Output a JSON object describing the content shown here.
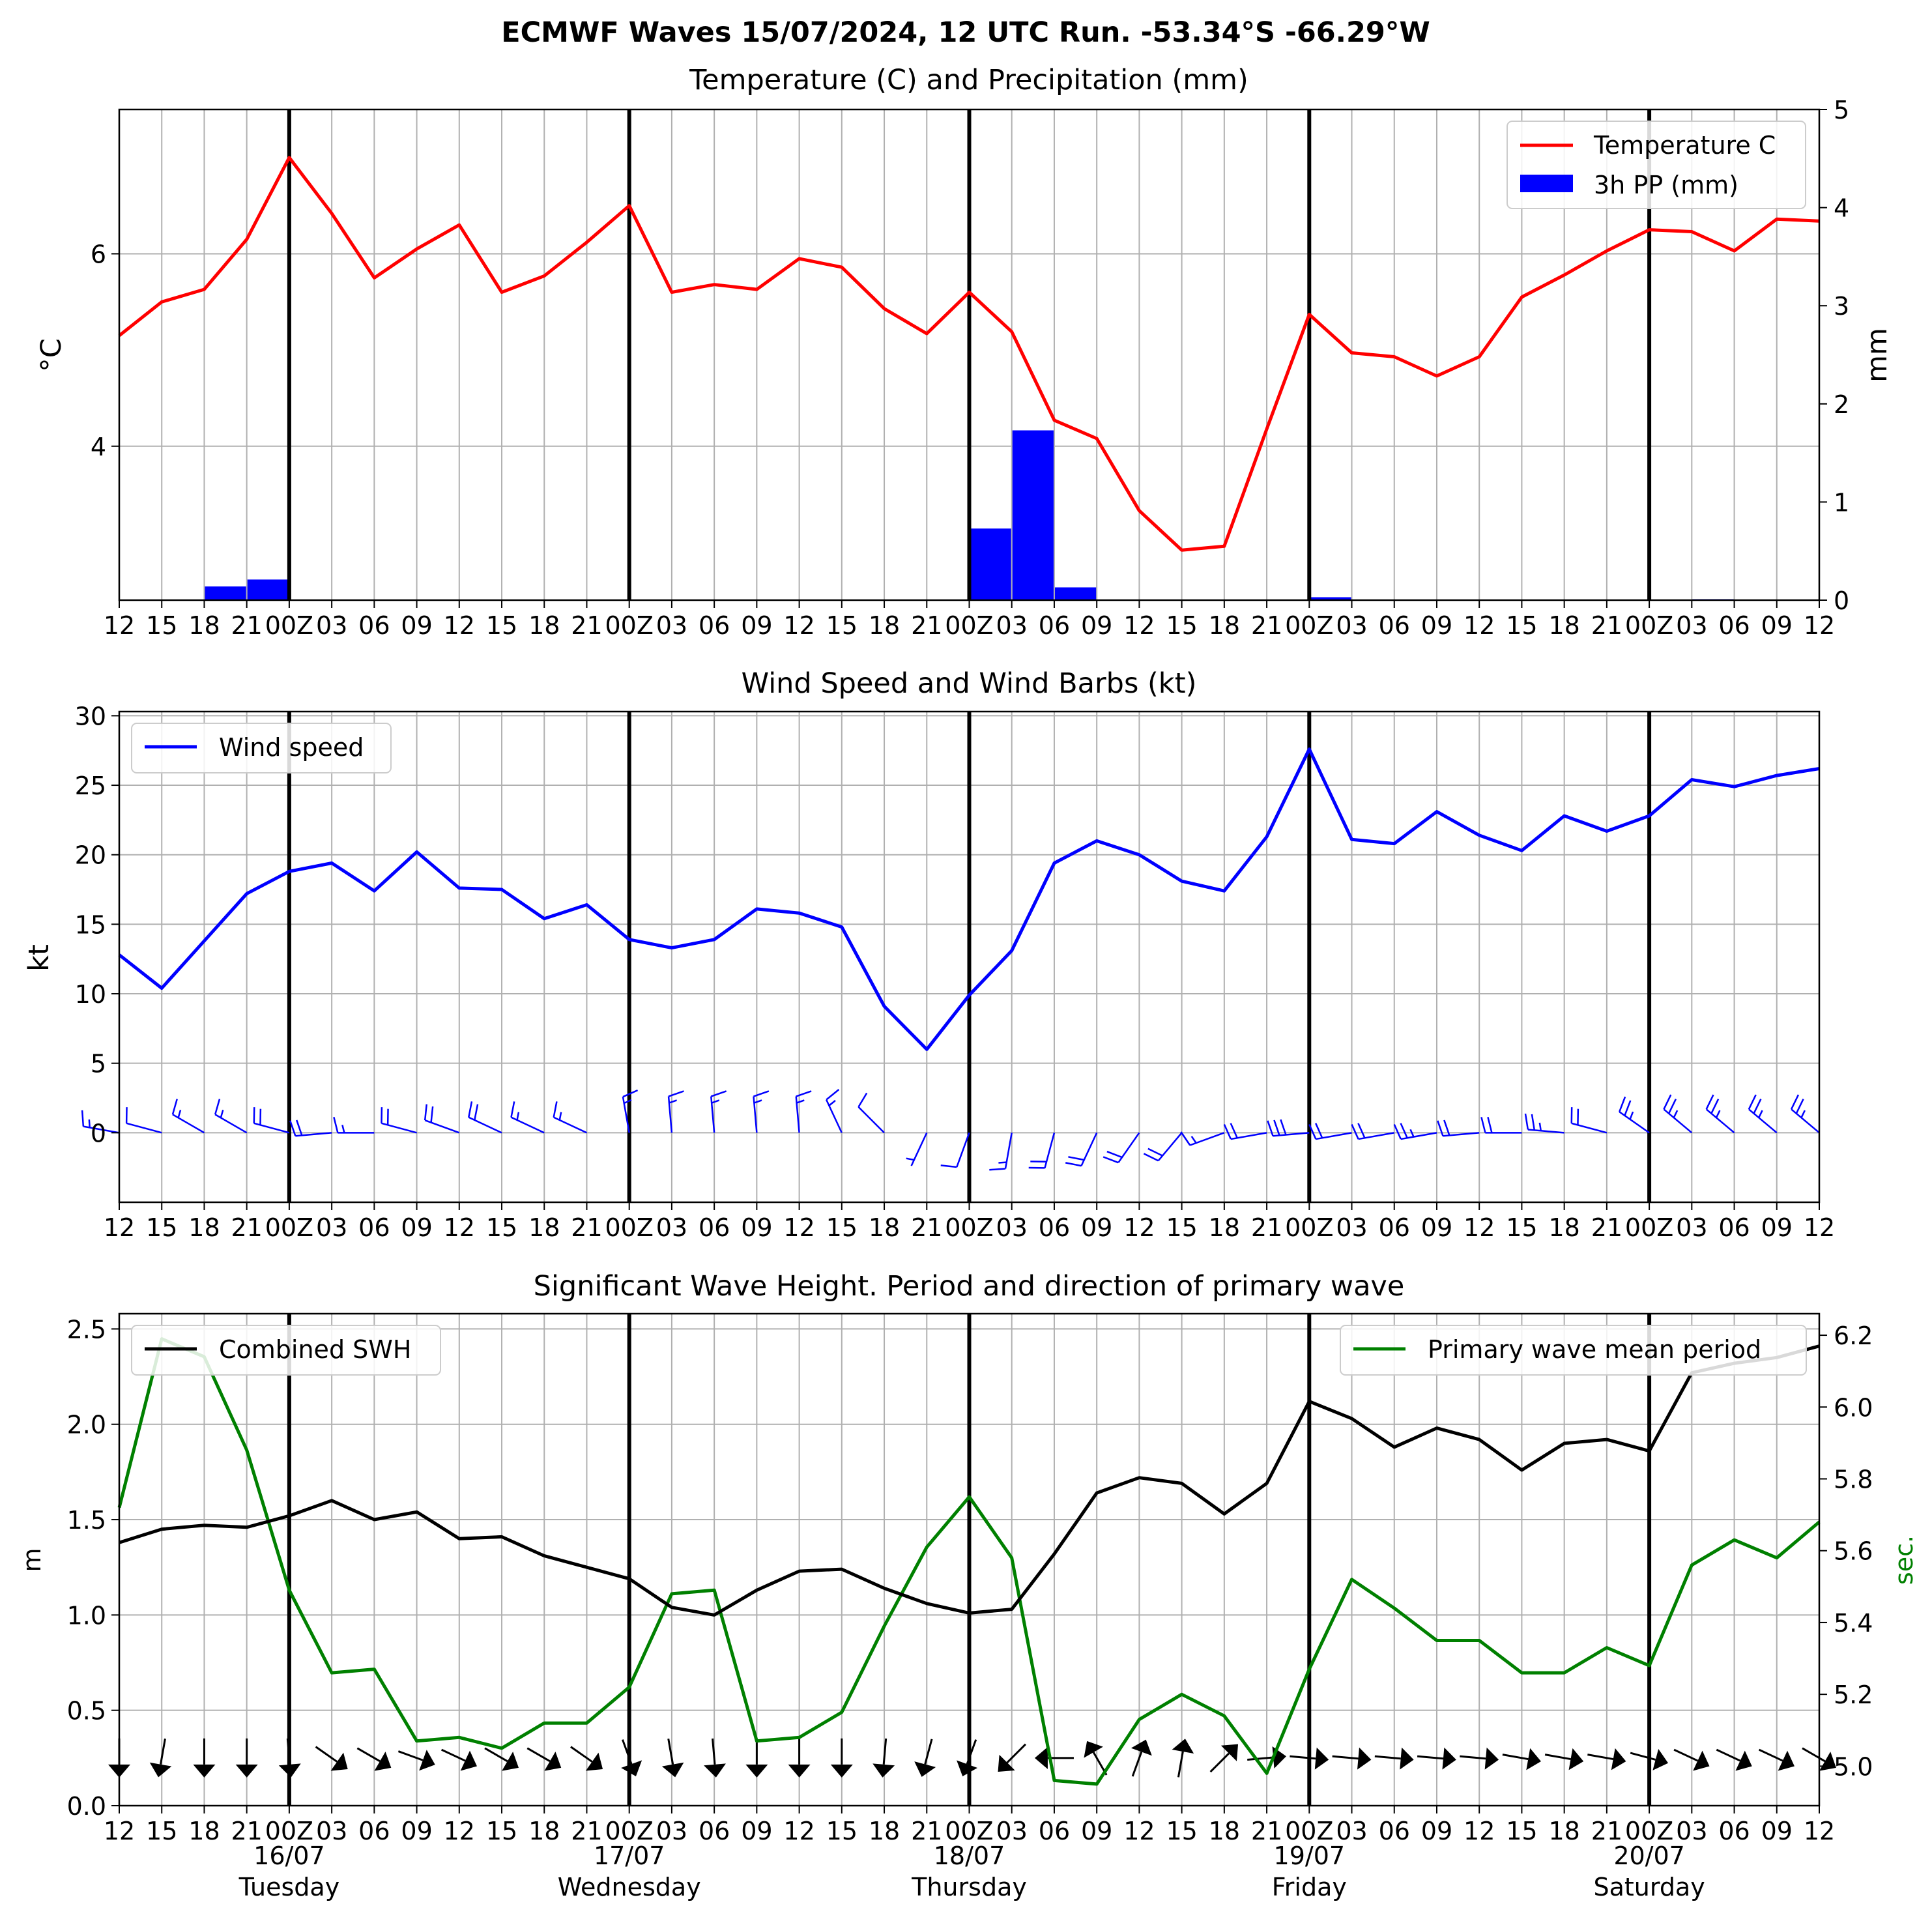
{
  "title": "ECMWF Waves 15/07/2024, 12 UTC Run. -53.34°S -66.29°W",
  "x_tick_labels": [
    "12",
    "15",
    "18",
    "21",
    "00Z",
    "03",
    "06",
    "09",
    "12",
    "15",
    "18",
    "21",
    "00Z",
    "03",
    "06",
    "09",
    "12",
    "15",
    "18",
    "21",
    "00Z",
    "03",
    "06",
    "09",
    "12",
    "15",
    "18",
    "21",
    "00Z",
    "03",
    "06",
    "09",
    "12",
    "15",
    "18",
    "21",
    "00Z",
    "03",
    "06",
    "09",
    "12"
  ],
  "day_labels": [
    {
      "date": "16/07",
      "day": "Tuesday",
      "tick_index": 4
    },
    {
      "date": "17/07",
      "day": "Wednesday",
      "tick_index": 12
    },
    {
      "date": "18/07",
      "day": "Thursday",
      "tick_index": 20
    },
    {
      "date": "19/07",
      "day": "Friday",
      "tick_index": 28
    },
    {
      "date": "20/07",
      "day": "Saturday",
      "tick_index": 36
    }
  ],
  "day_boundary_indices": [
    4,
    12,
    20,
    28,
    36
  ],
  "colors": {
    "temperature": "#ff0000",
    "precip": "#0000ff",
    "wind": "#0000ff",
    "swh": "#000000",
    "period": "#008000",
    "grid": "#b0b0b0"
  },
  "chart_data": [
    {
      "type": "line",
      "title": "Temperature (C) and Precipitation (mm)",
      "ylabel": "$^\\circ$C",
      "ylabel_right": "mm",
      "ylim": [
        2.4,
        7.5
      ],
      "yticks": [
        4,
        6
      ],
      "ylim_right": [
        0,
        5
      ],
      "yticks_right": [
        0,
        1,
        2,
        3,
        4,
        5
      ],
      "legend": "top-right",
      "series": [
        {
          "name": "Temperature C",
          "kind": "line",
          "values": [
            5.15,
            5.5,
            5.63,
            6.15,
            7.0,
            6.42,
            5.75,
            6.05,
            6.3,
            5.6,
            5.77,
            6.12,
            6.5,
            5.6,
            5.68,
            5.63,
            5.95,
            5.86,
            5.43,
            5.17,
            5.6,
            5.19,
            4.27,
            4.08,
            3.33,
            2.92,
            2.96,
            4.18,
            5.37,
            4.97,
            4.93,
            4.73,
            4.93,
            5.55,
            5.78,
            6.03,
            6.25,
            6.23,
            6.03,
            6.36,
            6.34
          ]
        },
        {
          "name": "3h PP (mm)",
          "kind": "bar",
          "values": [
            0,
            0,
            0.14,
            0.21,
            0,
            0,
            0,
            0,
            0,
            0,
            0,
            0,
            0,
            0,
            0,
            0,
            0,
            0,
            0,
            0,
            0.73,
            1.73,
            0.13,
            0,
            0,
            0,
            0,
            0,
            0.03,
            0,
            0,
            0,
            0,
            0,
            0,
            0,
            0,
            0.01,
            0,
            0
          ]
        }
      ]
    },
    {
      "type": "line",
      "title": "Wind Speed and Wind Barbs (kt)",
      "ylabel": "kt",
      "ylim": [
        -5,
        30.3
      ],
      "yticks": [
        0,
        5,
        10,
        15,
        20,
        25,
        30
      ],
      "legend": "top-left",
      "series": [
        {
          "name": "Wind speed",
          "values": [
            12.8,
            10.4,
            13.8,
            17.2,
            18.8,
            19.4,
            17.4,
            20.2,
            17.6,
            17.5,
            15.4,
            16.4,
            13.9,
            13.3,
            13.9,
            16.1,
            15.8,
            14.8,
            9.1,
            6.0,
            9.9,
            13.1,
            19.4,
            21.0,
            20.0,
            18.1,
            17.4,
            21.3,
            27.6,
            21.1,
            20.8,
            23.1,
            21.4,
            20.3,
            22.8,
            21.7,
            22.8,
            25.4,
            24.9,
            25.7,
            26.2
          ]
        }
      ],
      "wind_barbs": {
        "from_direction_deg": [
          280,
          285,
          300,
          300,
          285,
          265,
          270,
          285,
          290,
          295,
          295,
          295,
          350,
          355,
          355,
          355,
          355,
          335,
          315,
          205,
          200,
          190,
          195,
          205,
          215,
          220,
          250,
          260,
          265,
          260,
          260,
          260,
          265,
          270,
          275,
          285,
          305,
          310,
          310,
          310,
          310
        ],
        "speed_kt": [
          12.8,
          10.4,
          13.8,
          17.2,
          18.8,
          19.4,
          17.4,
          20.2,
          17.6,
          17.5,
          15.4,
          16.4,
          13.9,
          13.3,
          13.9,
          16.1,
          15.8,
          14.8,
          9.1,
          6.0,
          9.9,
          13.1,
          19.4,
          21.0,
          20.0,
          18.1,
          17.4,
          21.3,
          27.6,
          21.1,
          20.8,
          23.1,
          21.4,
          20.3,
          22.8,
          21.7,
          22.8,
          25.4,
          24.9,
          25.7,
          26.2
        ]
      }
    },
    {
      "type": "line",
      "title": "Significant Wave Height. Period and direction of primary wave",
      "ylabel": "m",
      "ylabel_right": "sec.",
      "ylim": [
        0,
        2.58
      ],
      "yticks": [
        0.0,
        0.5,
        1.0,
        1.5,
        2.0,
        2.5
      ],
      "ylim_right": [
        4.89,
        6.26
      ],
      "yticks_right": [
        5.0,
        5.2,
        5.4,
        5.6,
        5.8,
        6.0,
        6.2
      ],
      "legend_left": "top-left",
      "legend_right": "top-right",
      "series": [
        {
          "name": "Combined SWH",
          "axis": "left",
          "values": [
            1.38,
            1.45,
            1.47,
            1.46,
            1.52,
            1.6,
            1.5,
            1.54,
            1.4,
            1.41,
            1.31,
            1.25,
            1.19,
            1.04,
            1.0,
            1.13,
            1.23,
            1.24,
            1.14,
            1.06,
            1.01,
            1.03,
            1.32,
            1.64,
            1.72,
            1.69,
            1.53,
            1.69,
            2.12,
            2.03,
            1.88,
            1.98,
            1.92,
            1.76,
            1.9,
            1.92,
            1.86,
            2.27,
            2.32,
            2.35,
            2.41
          ]
        },
        {
          "name": "Primary wave mean period",
          "axis": "right",
          "values": [
            5.72,
            6.19,
            6.14,
            5.88,
            5.49,
            5.26,
            5.27,
            5.07,
            5.08,
            5.05,
            5.12,
            5.12,
            5.22,
            5.48,
            5.49,
            5.07,
            5.08,
            5.15,
            5.39,
            5.61,
            5.75,
            5.58,
            4.96,
            4.95,
            5.13,
            5.2,
            5.14,
            4.98,
            5.27,
            5.52,
            5.44,
            5.35,
            5.35,
            5.26,
            5.26,
            5.33,
            5.28,
            5.56,
            5.63,
            5.58,
            5.68
          ]
        }
      ],
      "wave_direction_toward_deg": [
        180,
        190,
        180,
        180,
        175,
        125,
        120,
        110,
        115,
        120,
        120,
        125,
        160,
        170,
        175,
        180,
        180,
        180,
        185,
        195,
        200,
        225,
        270,
        330,
        20,
        10,
        45,
        85,
        95,
        95,
        95,
        95,
        95,
        100,
        100,
        100,
        105,
        115,
        115,
        115,
        120
      ]
    }
  ]
}
